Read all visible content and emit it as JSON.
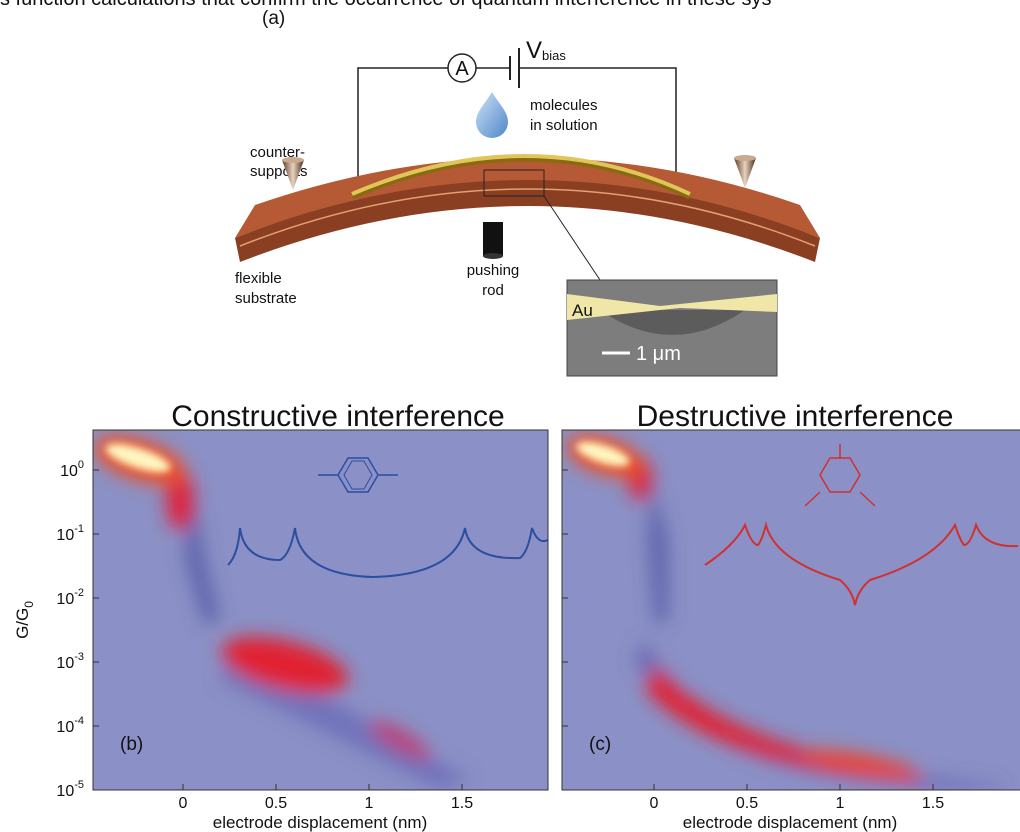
{
  "caption_fragment": "s function calculations that confirm the occurrence of quantum interference in these sys",
  "panel_a": {
    "label": "(a)",
    "ammeter": "A",
    "voltage": "V",
    "voltage_subscript": "bias",
    "molecules": [
      "molecules",
      "in solution"
    ],
    "counter_supports": [
      "counter-",
      "supports"
    ],
    "substrate": [
      "flexible",
      "substrate"
    ],
    "rod": [
      "pushing",
      "rod"
    ],
    "inset_material": "Au",
    "scale_bar": "1 μm"
  },
  "panels": [
    {
      "label": "(b)",
      "title": "Constructive interference"
    },
    {
      "label": "(c)",
      "title": "Destructive interference"
    }
  ],
  "y_axis": {
    "label": "G/G",
    "label_subscript": "0",
    "ticks": [
      {
        "base": "10",
        "exponent": "0"
      },
      {
        "base": "10",
        "exponent": "-1"
      },
      {
        "base": "10",
        "exponent": "-2"
      },
      {
        "base": "10",
        "exponent": "-3"
      },
      {
        "base": "10",
        "exponent": "-4"
      },
      {
        "base": "10",
        "exponent": "-5"
      }
    ]
  },
  "x_axis": {
    "label": "electrode displacement (nm)",
    "ticks": [
      "0",
      "0.5",
      "1",
      "1.5"
    ]
  }
}
